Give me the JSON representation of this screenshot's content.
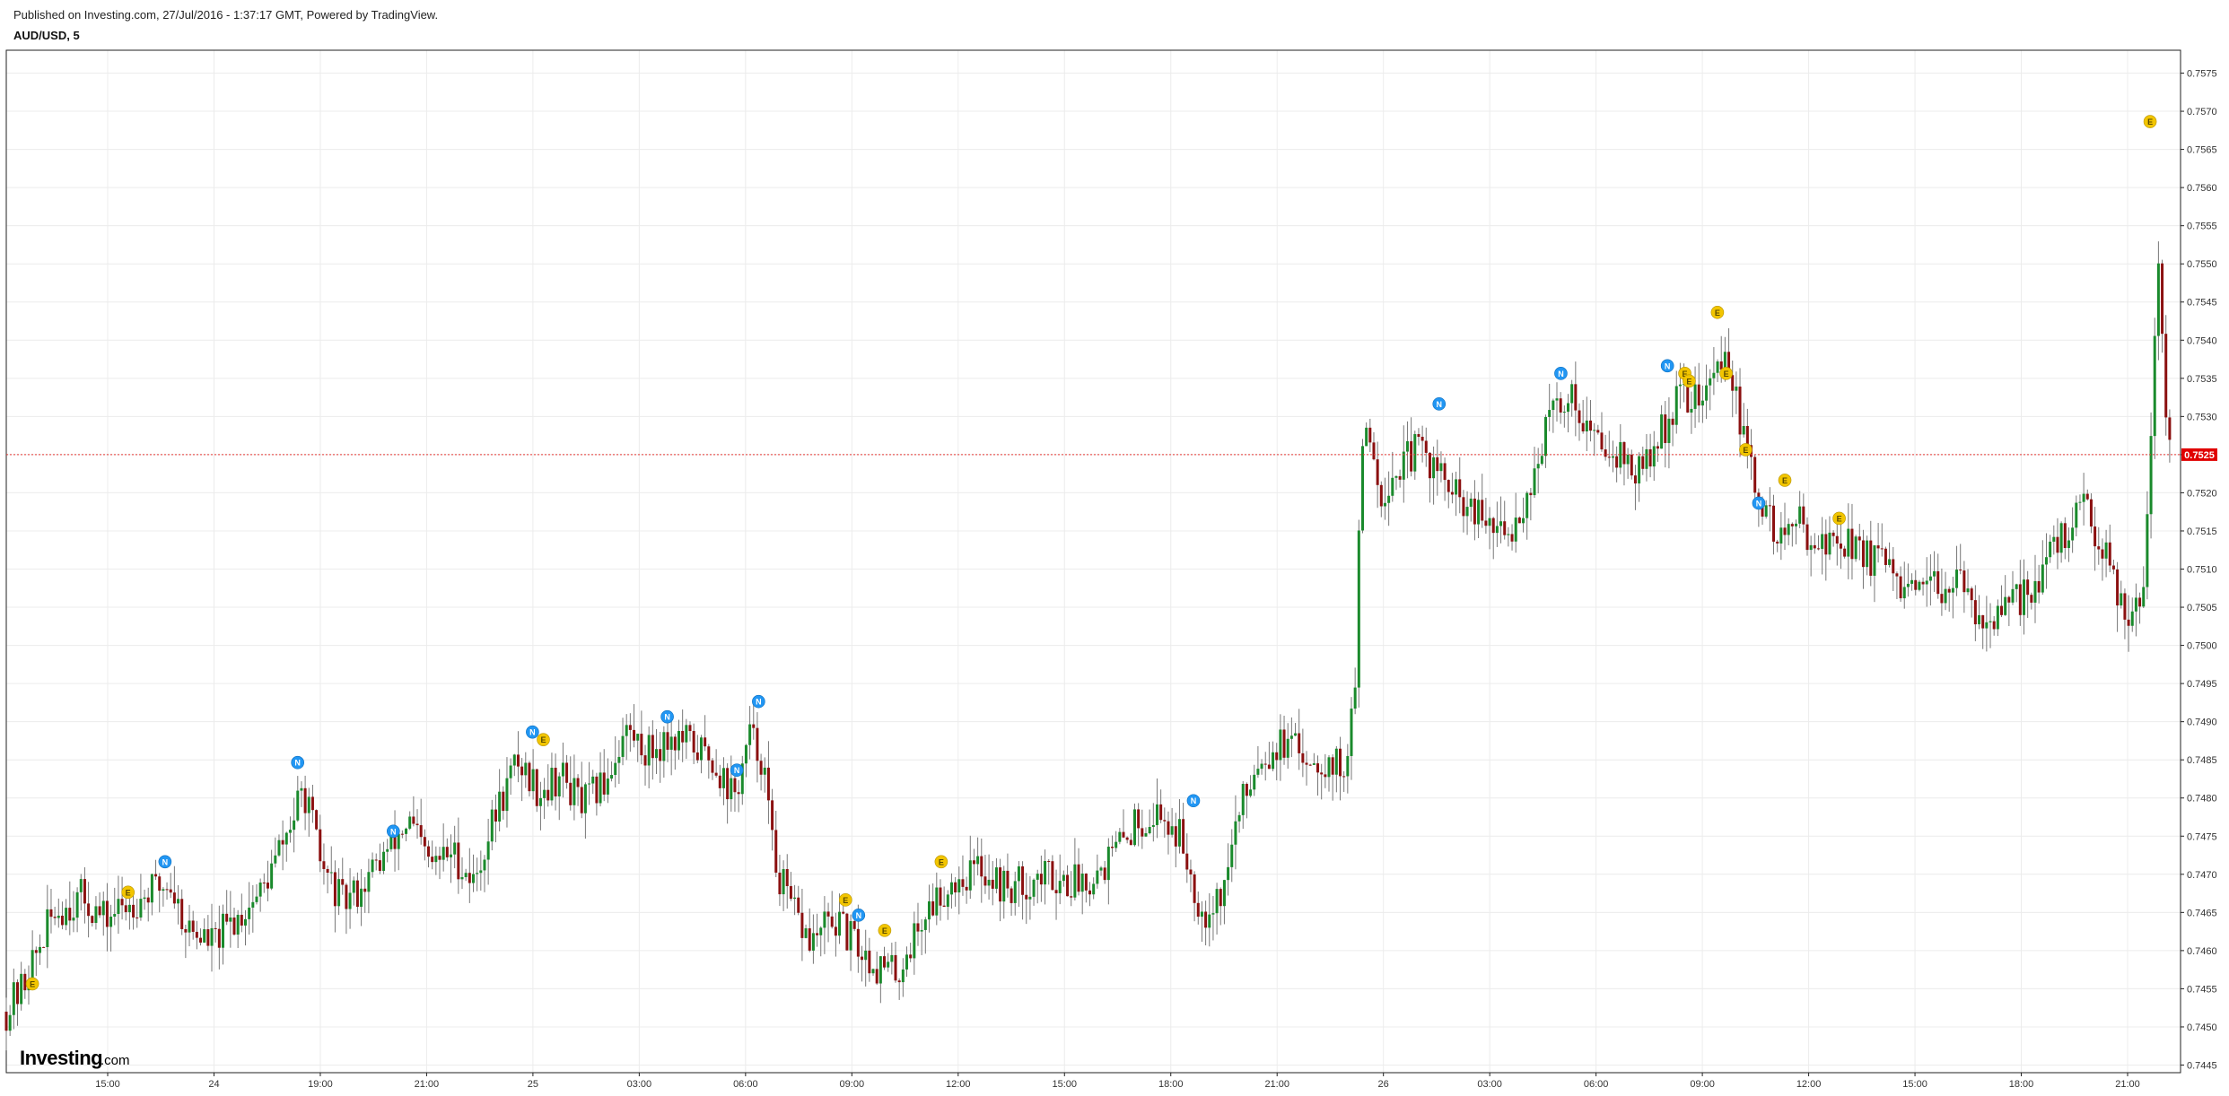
{
  "header": {
    "published": "Published on Investing.com, 27/Jul/2016 - 1:37:17 GMT, Powered by TradingView.",
    "symbol": "AUD/USD, 5"
  },
  "logo": {
    "brand": "Investing",
    "suffix": ".com"
  },
  "colors": {
    "up": "#1a8a2c",
    "down": "#8b1010",
    "price_line": "#e53935",
    "price_badge": "#e00000",
    "news": "#2196f3",
    "econ": "#f2c500",
    "grid": "#ececec"
  },
  "chart_data": {
    "type": "candlestick",
    "ylim": [
      0.7444,
      0.7578
    ],
    "y_ticks": [
      "0.7445",
      "0.7450",
      "0.7455",
      "0.7460",
      "0.7465",
      "0.7470",
      "0.7475",
      "0.7480",
      "0.7485",
      "0.7490",
      "0.7495",
      "0.7500",
      "0.7505",
      "0.7510",
      "0.7515",
      "0.7520",
      "0.7525",
      "0.7530",
      "0.7535",
      "0.7540",
      "0.7545",
      "0.7550",
      "0.7555",
      "0.7560",
      "0.7565",
      "0.7570",
      "0.7575"
    ],
    "x_ticks": [
      "15:00",
      "24",
      "19:00",
      "21:00",
      "25",
      "03:00",
      "06:00",
      "09:00",
      "12:00",
      "15:00",
      "18:00",
      "21:00",
      "26",
      "03:00",
      "06:00",
      "09:00",
      "12:00",
      "15:00",
      "18:00",
      "21:00"
    ],
    "last_price": 0.7525,
    "last_price_label": "0.7525",
    "price_path": [
      [
        0.0,
        0.7452
      ],
      [
        0.7,
        0.7455
      ],
      [
        2.2,
        0.7465
      ],
      [
        3.5,
        0.7467
      ],
      [
        4.5,
        0.7464
      ],
      [
        5.5,
        0.7466
      ],
      [
        6.8,
        0.7468
      ],
      [
        7.5,
        0.7469
      ],
      [
        8.3,
        0.7463
      ],
      [
        9.5,
        0.7461
      ],
      [
        10.5,
        0.7464
      ],
      [
        11.8,
        0.7468
      ],
      [
        13.0,
        0.7476
      ],
      [
        13.7,
        0.7481
      ],
      [
        14.5,
        0.7471
      ],
      [
        15.5,
        0.7466
      ],
      [
        16.5,
        0.7469
      ],
      [
        17.5,
        0.7473
      ],
      [
        18.5,
        0.7477
      ],
      [
        19.5,
        0.7471
      ],
      [
        20.5,
        0.7473
      ],
      [
        21.5,
        0.7469
      ],
      [
        22.5,
        0.7478
      ],
      [
        23.5,
        0.7485
      ],
      [
        24.5,
        0.7481
      ],
      [
        25.5,
        0.7483
      ],
      [
        26.5,
        0.7479
      ],
      [
        27.5,
        0.7482
      ],
      [
        28.5,
        0.7489
      ],
      [
        29.5,
        0.7486
      ],
      [
        30.5,
        0.7488
      ],
      [
        31.5,
        0.7487
      ],
      [
        32.5,
        0.7485
      ],
      [
        33.5,
        0.748
      ],
      [
        34.2,
        0.7488
      ],
      [
        34.8,
        0.7485
      ],
      [
        35.3,
        0.7472
      ],
      [
        36.0,
        0.7466
      ],
      [
        37.0,
        0.7461
      ],
      [
        38.0,
        0.7464
      ],
      [
        39.0,
        0.7461
      ],
      [
        40.0,
        0.7458
      ],
      [
        41.0,
        0.7457
      ],
      [
        41.6,
        0.7461
      ],
      [
        42.5,
        0.7466
      ],
      [
        43.5,
        0.7469
      ],
      [
        44.8,
        0.7471
      ],
      [
        46.0,
        0.7468
      ],
      [
        47.0,
        0.7469
      ],
      [
        48.0,
        0.747
      ],
      [
        49.0,
        0.7469
      ],
      [
        50.0,
        0.747
      ],
      [
        51.0,
        0.7473
      ],
      [
        52.0,
        0.7477
      ],
      [
        53.0,
        0.7478
      ],
      [
        54.0,
        0.7475
      ],
      [
        55.0,
        0.7465
      ],
      [
        56.0,
        0.7468
      ],
      [
        56.5,
        0.7476
      ],
      [
        57.5,
        0.7485
      ],
      [
        58.5,
        0.7487
      ],
      [
        59.5,
        0.7486
      ],
      [
        60.5,
        0.7485
      ],
      [
        61.5,
        0.7484
      ],
      [
        61.9,
        0.749
      ],
      [
        62.1,
        0.7499
      ],
      [
        62.3,
        0.7524
      ],
      [
        62.6,
        0.753
      ],
      [
        63.2,
        0.752
      ],
      [
        64.0,
        0.7523
      ],
      [
        65.0,
        0.7526
      ],
      [
        66.0,
        0.7522
      ],
      [
        67.0,
        0.7518
      ],
      [
        68.0,
        0.7516
      ],
      [
        69.0,
        0.7514
      ],
      [
        70.0,
        0.752
      ],
      [
        71.0,
        0.753
      ],
      [
        72.0,
        0.7533
      ],
      [
        73.0,
        0.7527
      ],
      [
        74.0,
        0.7526
      ],
      [
        75.0,
        0.7522
      ],
      [
        76.0,
        0.7527
      ],
      [
        77.0,
        0.7533
      ],
      [
        78.0,
        0.7532
      ],
      [
        78.6,
        0.7536
      ],
      [
        79.2,
        0.7538
      ],
      [
        79.8,
        0.7528
      ],
      [
        80.5,
        0.752
      ],
      [
        81.5,
        0.7514
      ],
      [
        82.5,
        0.7516
      ],
      [
        83.5,
        0.7513
      ],
      [
        84.5,
        0.7514
      ],
      [
        85.5,
        0.7512
      ],
      [
        86.5,
        0.751
      ],
      [
        87.5,
        0.7506
      ],
      [
        88.5,
        0.7507
      ],
      [
        89.5,
        0.7509
      ],
      [
        90.5,
        0.7505
      ],
      [
        91.5,
        0.7503
      ],
      [
        92.5,
        0.7506
      ],
      [
        93.5,
        0.7509
      ],
      [
        94.5,
        0.7514
      ],
      [
        95.5,
        0.7518
      ],
      [
        96.5,
        0.7513
      ],
      [
        97.5,
        0.7504
      ],
      [
        98.3,
        0.7508
      ],
      [
        98.8,
        0.7538
      ],
      [
        99.0,
        0.7553
      ],
      [
        99.3,
        0.753
      ],
      [
        99.5,
        0.7525
      ]
    ],
    "events": [
      {
        "type": "E",
        "x": 1.2,
        "price": 0.7454
      },
      {
        "type": "E",
        "x": 5.6,
        "price": 0.7466
      },
      {
        "type": "N",
        "x": 7.3,
        "price": 0.747
      },
      {
        "type": "N",
        "x": 13.4,
        "price": 0.7483
      },
      {
        "type": "N",
        "x": 17.8,
        "price": 0.7474
      },
      {
        "type": "N",
        "x": 24.2,
        "price": 0.7487
      },
      {
        "type": "E",
        "x": 24.7,
        "price": 0.7486
      },
      {
        "type": "N",
        "x": 30.4,
        "price": 0.7489
      },
      {
        "type": "N",
        "x": 33.6,
        "price": 0.7482
      },
      {
        "type": "N",
        "x": 34.6,
        "price": 0.7491
      },
      {
        "type": "E",
        "x": 38.6,
        "price": 0.7465
      },
      {
        "type": "N",
        "x": 39.2,
        "price": 0.7463
      },
      {
        "type": "E",
        "x": 40.4,
        "price": 0.7461
      },
      {
        "type": "E",
        "x": 43.0,
        "price": 0.747
      },
      {
        "type": "N",
        "x": 54.6,
        "price": 0.7478
      },
      {
        "type": "N",
        "x": 65.9,
        "price": 0.753
      },
      {
        "type": "N",
        "x": 71.5,
        "price": 0.7534
      },
      {
        "type": "N",
        "x": 76.4,
        "price": 0.7535
      },
      {
        "type": "E",
        "x": 77.2,
        "price": 0.7534
      },
      {
        "type": "E",
        "x": 77.4,
        "price": 0.7533
      },
      {
        "type": "E",
        "x": 78.7,
        "price": 0.7542
      },
      {
        "type": "E",
        "x": 79.1,
        "price": 0.7534
      },
      {
        "type": "E",
        "x": 80.0,
        "price": 0.7524
      },
      {
        "type": "N",
        "x": 80.6,
        "price": 0.7517
      },
      {
        "type": "E",
        "x": 81.8,
        "price": 0.752
      },
      {
        "type": "E",
        "x": 84.3,
        "price": 0.7515
      },
      {
        "type": "E",
        "x": 98.6,
        "price": 0.7567
      }
    ]
  }
}
